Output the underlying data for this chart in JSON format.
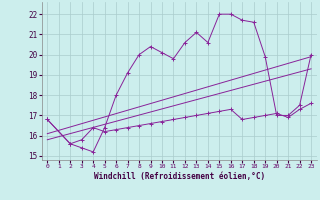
{
  "title": "",
  "xlabel": "Windchill (Refroidissement éolien,°C)",
  "background_color": "#cceeed",
  "grid_color": "#aacccc",
  "line_color": "#882299",
  "xlim": [
    -0.5,
    23.5
  ],
  "ylim": [
    14.8,
    22.6
  ],
  "yticks": [
    15,
    16,
    17,
    18,
    19,
    20,
    21,
    22
  ],
  "xticks": [
    0,
    1,
    2,
    3,
    4,
    5,
    6,
    7,
    8,
    9,
    10,
    11,
    12,
    13,
    14,
    15,
    16,
    17,
    18,
    19,
    20,
    21,
    22,
    23
  ],
  "series1_x": [
    0,
    2,
    3,
    4,
    5,
    6,
    7,
    8,
    9,
    10,
    11,
    12,
    13,
    14,
    15,
    16,
    17,
    18,
    19,
    20,
    21,
    22,
    23
  ],
  "series1_y": [
    16.8,
    15.6,
    15.4,
    15.2,
    16.4,
    18.0,
    19.1,
    20.0,
    20.4,
    20.1,
    19.8,
    20.6,
    21.1,
    20.6,
    22.0,
    22.0,
    21.7,
    21.6,
    19.9,
    17.0,
    17.0,
    17.5,
    20.0
  ],
  "series2_x": [
    0,
    2,
    3,
    4,
    5,
    6,
    7,
    8,
    9,
    10,
    11,
    12,
    13,
    14,
    15,
    16,
    17,
    18,
    19,
    20,
    21,
    22,
    23
  ],
  "series2_y": [
    16.8,
    15.6,
    15.8,
    16.4,
    16.2,
    16.3,
    16.4,
    16.5,
    16.6,
    16.7,
    16.8,
    16.9,
    17.0,
    17.1,
    17.2,
    17.3,
    16.8,
    16.9,
    17.0,
    17.1,
    16.9,
    17.3,
    17.6
  ],
  "series3_x": [
    0,
    23
  ],
  "series3_y": [
    16.1,
    19.9
  ],
  "series4_x": [
    0,
    23
  ],
  "series4_y": [
    15.8,
    19.3
  ]
}
